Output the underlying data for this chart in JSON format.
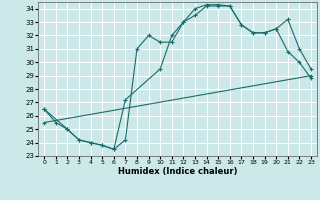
{
  "title": "",
  "xlabel": "Humidex (Indice chaleur)",
  "ylabel": "",
  "bg_color": "#cce8e8",
  "grid_color": "#ffffff",
  "line_color": "#1a6b6b",
  "xlim": [
    -0.5,
    23.5
  ],
  "ylim": [
    23,
    34.5
  ],
  "yticks": [
    23,
    24,
    25,
    26,
    27,
    28,
    29,
    30,
    31,
    32,
    33,
    34
  ],
  "xticks": [
    0,
    1,
    2,
    3,
    4,
    5,
    6,
    7,
    8,
    9,
    10,
    11,
    12,
    13,
    14,
    15,
    16,
    17,
    18,
    19,
    20,
    21,
    22,
    23
  ],
  "line1_x": [
    0,
    1,
    2,
    3,
    4,
    5,
    6,
    7,
    8,
    9,
    10,
    11,
    12,
    13,
    14,
    15,
    16,
    17,
    18,
    19,
    20,
    21,
    22,
    23
  ],
  "line1_y": [
    26.5,
    25.5,
    25.0,
    24.2,
    24.0,
    23.8,
    23.5,
    24.2,
    31.0,
    32.0,
    31.5,
    31.5,
    33.0,
    33.5,
    34.2,
    34.2,
    34.2,
    32.8,
    32.2,
    32.2,
    32.5,
    33.2,
    31.0,
    29.5
  ],
  "line2_x": [
    0,
    2,
    3,
    4,
    5,
    6,
    7,
    10,
    11,
    12,
    13,
    14,
    15,
    16,
    17,
    18,
    19,
    20,
    21,
    22,
    23
  ],
  "line2_y": [
    26.5,
    25.0,
    24.2,
    24.0,
    23.8,
    23.5,
    27.2,
    29.5,
    32.0,
    33.0,
    34.0,
    34.3,
    34.3,
    34.2,
    32.8,
    32.2,
    32.2,
    32.5,
    30.8,
    30.0,
    28.8
  ],
  "line3_x": [
    0,
    23
  ],
  "line3_y": [
    25.5,
    29.0
  ]
}
